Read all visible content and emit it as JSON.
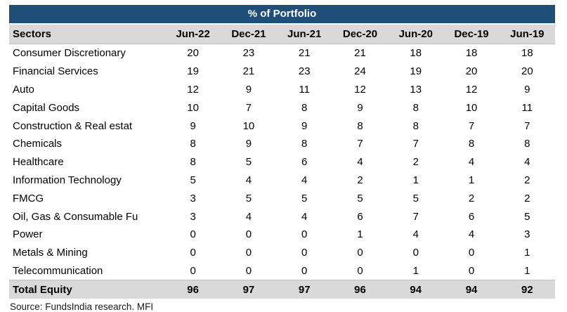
{
  "colors": {
    "title_bg": "#1F4E79",
    "title_text": "#FFFFFF",
    "header_row_bg": "#D9D9D9",
    "total_row_bg": "#D9D9D9",
    "body_text": "#000000"
  },
  "chart_data": {
    "type": "table",
    "title": "% of Portfolio",
    "columns": [
      "Sectors",
      "Jun-22",
      "Dec-21",
      "Jun-21",
      "Dec-20",
      "Jun-20",
      "Dec-19",
      "Jun-19"
    ],
    "rows": [
      {
        "sector": "Consumer Discretionary",
        "values": [
          20,
          23,
          21,
          21,
          18,
          18,
          18
        ]
      },
      {
        "sector": "Financial Services",
        "values": [
          19,
          21,
          23,
          24,
          19,
          20,
          20
        ]
      },
      {
        "sector": "Auto",
        "values": [
          12,
          9,
          11,
          12,
          13,
          12,
          9
        ]
      },
      {
        "sector": "Capital Goods",
        "values": [
          10,
          7,
          8,
          9,
          8,
          10,
          11
        ]
      },
      {
        "sector": "Construction & Real estat",
        "values": [
          9,
          10,
          9,
          8,
          8,
          7,
          7
        ]
      },
      {
        "sector": "Chemicals",
        "values": [
          8,
          9,
          8,
          7,
          7,
          8,
          8
        ]
      },
      {
        "sector": "Healthcare",
        "values": [
          8,
          5,
          6,
          4,
          2,
          4,
          4
        ]
      },
      {
        "sector": "Information Technology",
        "values": [
          5,
          4,
          4,
          2,
          1,
          1,
          2
        ]
      },
      {
        "sector": "FMCG",
        "values": [
          3,
          5,
          5,
          5,
          5,
          2,
          2
        ]
      },
      {
        "sector": "Oil, Gas & Consumable Fu",
        "values": [
          3,
          4,
          4,
          6,
          7,
          6,
          5
        ]
      },
      {
        "sector": "Power",
        "values": [
          0,
          0,
          0,
          1,
          4,
          4,
          3
        ]
      },
      {
        "sector": "Metals & Mining",
        "values": [
          0,
          0,
          0,
          0,
          0,
          0,
          1
        ]
      },
      {
        "sector": "Telecommunication",
        "values": [
          0,
          0,
          0,
          0,
          1,
          0,
          1
        ]
      }
    ],
    "total_row": {
      "label": "Total Equity",
      "values": [
        96,
        97,
        97,
        96,
        94,
        94,
        92
      ]
    },
    "source": "Source: FundsIndia research. MFI"
  }
}
